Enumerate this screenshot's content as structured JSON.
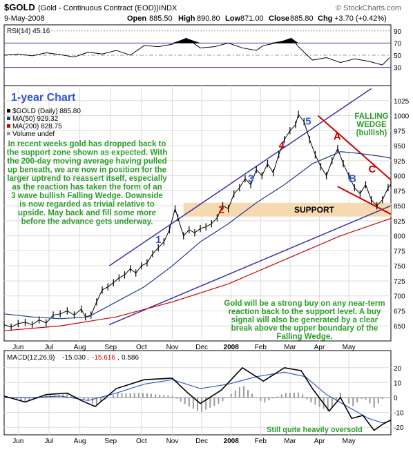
{
  "header": {
    "symbol": "$GOLD",
    "name": "(Gold - Continuous Contract (EOD))",
    "exchange": "INDX",
    "source": "© StockCharts.com",
    "date": "9-May-2008",
    "quote": {
      "open_label": "Open",
      "open": "885.50",
      "high_label": "High",
      "high": "890.80",
      "low_label": "Low",
      "low": "871.00",
      "close_label": "Close",
      "close": "885.80",
      "chg_label": "Chg",
      "chg": "+3.70 (+0.42%)"
    }
  },
  "colors": {
    "price": "#000000",
    "ma50": "#1e3a8a",
    "ma200": "#cc0000",
    "channel": "#3333aa",
    "wedge": "#cc0000",
    "support_band": "#f6d9b0",
    "rsi_fill": "#000000",
    "annotation_green": "#2a9d2a",
    "wave_blue": "#3355cc",
    "wave_red": "#cc0000",
    "volume_bar": "#999999"
  },
  "chart_data": [
    {
      "type": "line",
      "panel": "RSI",
      "legend": "RSI(14) 45.16",
      "ylim": [
        0,
        100
      ],
      "yticks": [
        30,
        50,
        70,
        90
      ],
      "x": [
        0,
        10,
        20,
        30,
        40,
        50,
        60,
        70,
        80,
        90,
        100,
        110,
        120,
        130,
        140,
        150,
        160,
        170,
        180,
        185,
        190,
        200,
        205,
        210,
        220,
        230,
        240,
        250,
        260,
        270,
        275
      ],
      "values": [
        50,
        52,
        49,
        54,
        51,
        47,
        55,
        52,
        58,
        50,
        66,
        64,
        68,
        78,
        62,
        64,
        70,
        62,
        58,
        66,
        68,
        74,
        78,
        64,
        42,
        46,
        38,
        44,
        40,
        34,
        46
      ]
    },
    {
      "type": "line",
      "panel": "price",
      "title": "1-year Chart",
      "legend": [
        "$GOLD (Daily) 885.80",
        "MA(50) 929.32",
        "MA(200) 828.75",
        "Volume undef"
      ],
      "ylim": [
        625,
        1050
      ],
      "yticks": [
        650,
        675,
        700,
        725,
        750,
        775,
        800,
        825,
        850,
        875,
        900,
        925,
        950,
        975,
        1000,
        1025
      ],
      "xticks": [
        {
          "label": "Jun",
          "x": 10
        },
        {
          "label": "Jul",
          "x": 32
        },
        {
          "label": "Aug",
          "x": 54
        },
        {
          "label": "Sep",
          "x": 76
        },
        {
          "label": "Oct",
          "x": 98
        },
        {
          "label": "Nov",
          "x": 120
        },
        {
          "label": "Dec",
          "x": 141
        },
        {
          "label": "2008",
          "x": 162
        },
        {
          "label": "Feb",
          "x": 183
        },
        {
          "label": "Mar",
          "x": 204
        },
        {
          "label": "Apr",
          "x": 225
        },
        {
          "label": "May",
          "x": 246
        }
      ],
      "series": [
        {
          "x": [
            0,
            5,
            10,
            15,
            20,
            25,
            30,
            35,
            40,
            45,
            50,
            55,
            58,
            62,
            66,
            70,
            74,
            78,
            82,
            86,
            90,
            94,
            98,
            102,
            106,
            110,
            114,
            118,
            122,
            124,
            128,
            132,
            136,
            140,
            144,
            148,
            152,
            156,
            160,
            164,
            168,
            172,
            176,
            180,
            184,
            188,
            192,
            196,
            200,
            204,
            208,
            210,
            214,
            218,
            222,
            226,
            230,
            234,
            238,
            242,
            246,
            250,
            254,
            258,
            262,
            266,
            270,
            274,
            276
          ],
          "values": [
            652,
            648,
            654,
            656,
            652,
            660,
            655,
            668,
            670,
            675,
            668,
            678,
            665,
            668,
            690,
            710,
            715,
            722,
            730,
            735,
            745,
            738,
            750,
            755,
            770,
            780,
            790,
            810,
            845,
            830,
            800,
            810,
            805,
            812,
            815,
            820,
            830,
            850,
            845,
            870,
            880,
            895,
            885,
            910,
            900,
            920,
            905,
            935,
            960,
            975,
            985,
            1002,
            990,
            960,
            935,
            915,
            900,
            925,
            945,
            920,
            900,
            880,
            870,
            885,
            860,
            850,
            860,
            880,
            886
          ]
        },
        {
          "name": "MA(50)",
          "x": [
            0,
            20,
            40,
            60,
            80,
            100,
            120,
            140,
            160,
            180,
            200,
            220,
            240,
            250,
            260,
            270,
            276
          ],
          "values": [
            670,
            665,
            662,
            665,
            690,
            715,
            750,
            790,
            820,
            855,
            885,
            920,
            940,
            938,
            935,
            932,
            929
          ]
        },
        {
          "name": "MA(200)",
          "x": [
            0,
            40,
            80,
            120,
            160,
            200,
            240,
            276
          ],
          "values": [
            642,
            650,
            665,
            690,
            720,
            760,
            800,
            829
          ]
        }
      ],
      "wave_labels": [
        {
          "label": "1",
          "x": 108,
          "y": 788,
          "color": "blue"
        },
        {
          "label": "2",
          "x": 153,
          "y": 838,
          "color": "red"
        },
        {
          "label": "3",
          "x": 174,
          "y": 890,
          "color": "blue"
        },
        {
          "label": "4",
          "x": 196,
          "y": 945,
          "color": "red"
        },
        {
          "label": "5",
          "x": 215,
          "y": 985,
          "color": "blue"
        },
        {
          "label": "A",
          "x": 235,
          "y": 960,
          "color": "red"
        },
        {
          "label": "B",
          "x": 246,
          "y": 890,
          "color": "blue"
        },
        {
          "label": "C",
          "x": 260,
          "y": 905,
          "color": "red"
        }
      ],
      "support": {
        "label": "SUPPORT",
        "y_range": [
          832,
          855
        ]
      },
      "annotations": {
        "wedge_title": [
          "FALLING",
          "WEDGE",
          "(bullish)"
        ],
        "commentary_left": [
          "In recent weeks gold has dropped back to",
          "the support zone shown as expected. With",
          "the 200-day moving average having pulled",
          "up beneath, we are now in position for the",
          "larger uptrend to reassert itself, especially",
          "as the reaction has taken the form of an",
          "3 wave bullish Falling Wedge. Downside",
          "is now regarded as trivial relative to",
          "upside. May back and fill some more",
          "before the advance gets underway."
        ],
        "commentary_right": [
          "Gold will be a strong buy on any near-term",
          "reaction back to the support level. A buy",
          "signal will also be generated by a clear",
          "break above the upper boundary of the",
          "Falling Wedge."
        ]
      }
    },
    {
      "type": "line",
      "panel": "MACD",
      "legend": [
        "MACD(12,26,9)",
        "-15.030",
        ", ",
        "-15.616",
        ", ",
        "0.586"
      ],
      "ylim": [
        -25,
        25
      ],
      "yticks": [
        -20,
        -10,
        0,
        10,
        20
      ],
      "note": "Still quite heavily oversold",
      "series": [
        {
          "name": "MACD",
          "x": [
            0,
            15,
            30,
            45,
            55,
            65,
            80,
            100,
            120,
            130,
            140,
            155,
            170,
            185,
            200,
            212,
            220,
            232,
            240,
            248,
            256,
            264,
            270,
            276
          ],
          "values": [
            1,
            -3,
            2,
            3,
            -2,
            -6,
            6,
            12,
            13,
            4,
            -4,
            5,
            20,
            11,
            20,
            18,
            6,
            -9,
            0,
            -14,
            -12,
            -22,
            -18,
            -15
          ]
        },
        {
          "name": "Signal",
          "x": [
            0,
            20,
            40,
            60,
            80,
            100,
            120,
            140,
            160,
            180,
            200,
            215,
            230,
            245,
            260,
            270,
            276
          ],
          "values": [
            0,
            0,
            1,
            -2,
            3,
            9,
            12,
            6,
            9,
            14,
            17,
            14,
            2,
            -6,
            -14,
            -17,
            -15.6
          ]
        }
      ],
      "xticks": [
        {
          "label": "Jun",
          "x": 10
        },
        {
          "label": "Jul",
          "x": 32
        },
        {
          "label": "Aug",
          "x": 54
        },
        {
          "label": "Sep",
          "x": 76
        },
        {
          "label": "Oct",
          "x": 98
        },
        {
          "label": "Nov",
          "x": 120
        },
        {
          "label": "Dec",
          "x": 141
        },
        {
          "label": "2008",
          "x": 162
        },
        {
          "label": "Feb",
          "x": 183
        },
        {
          "label": "Mar",
          "x": 204
        },
        {
          "label": "Apr",
          "x": 225
        },
        {
          "label": "May",
          "x": 246
        }
      ]
    }
  ]
}
